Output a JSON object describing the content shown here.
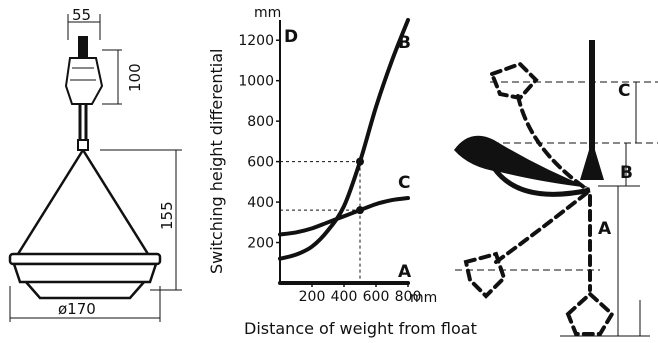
{
  "float_drawing": {
    "top_width": "55",
    "top_height": "100",
    "body_height": "155",
    "diameter": "ø170"
  },
  "chart_data": {
    "type": "line",
    "ylabel": "Switching height differential",
    "yunit": "mm",
    "xlabel": "Distance of weight from float",
    "xunit": "mm",
    "xlim": [
      0,
      800
    ],
    "ylim": [
      0,
      1300
    ],
    "x_ticks": [
      "200",
      "400",
      "600",
      "800"
    ],
    "y_ticks": [
      "200",
      "400",
      "600",
      "800",
      "1000",
      "1200"
    ],
    "corner_label": "D",
    "series": [
      {
        "name": "B",
        "x": [
          0,
          100,
          200,
          300,
          400,
          500,
          600,
          700,
          800
        ],
        "y": [
          120,
          140,
          180,
          260,
          380,
          600,
          870,
          1100,
          1300
        ]
      },
      {
        "name": "C",
        "x": [
          0,
          100,
          200,
          300,
          400,
          500,
          600,
          700,
          800
        ],
        "y": [
          240,
          250,
          270,
          300,
          330,
          360,
          390,
          410,
          420
        ]
      },
      {
        "name": "A",
        "x": [
          0,
          800
        ],
        "y": [
          0,
          0
        ]
      }
    ],
    "markers": [
      {
        "x": 500,
        "y": 600
      },
      {
        "x": 500,
        "y": 360
      }
    ]
  },
  "schematic": {
    "labels": [
      "C",
      "B",
      "A"
    ]
  }
}
